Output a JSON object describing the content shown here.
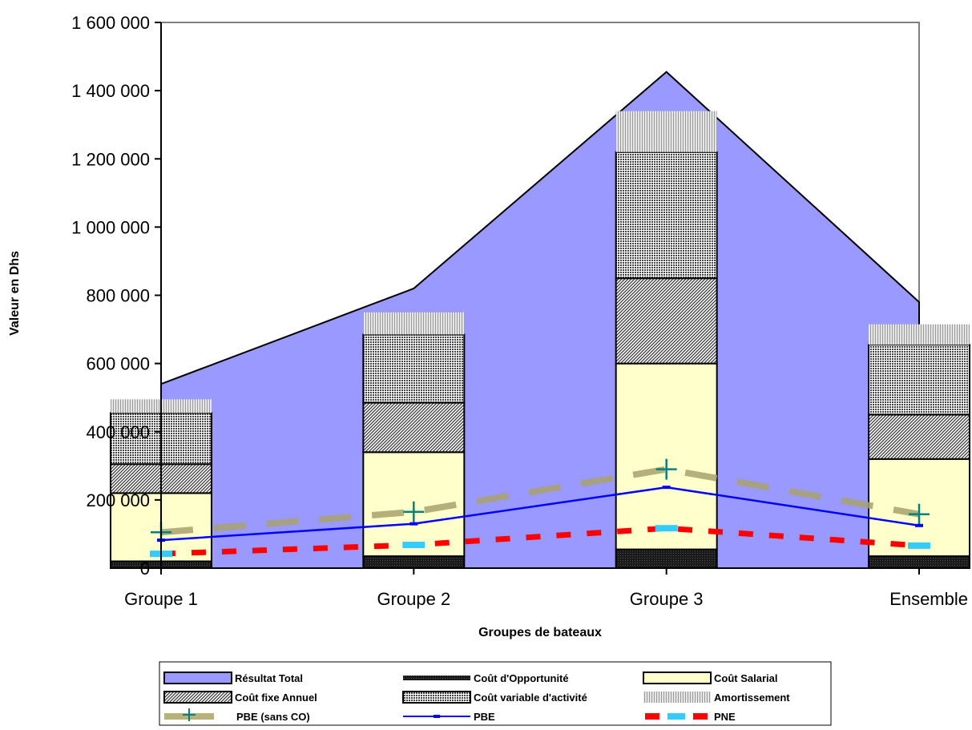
{
  "chart_data": {
    "type": "bar",
    "stacked": true,
    "title": "",
    "xlabel": "Groupes de bateaux",
    "ylabel": "Valeur en Dhs",
    "ylim": [
      0,
      1600000
    ],
    "yticks": [
      0,
      200000,
      400000,
      600000,
      800000,
      1000000,
      1200000,
      1400000,
      1600000
    ],
    "ytick_labels": [
      "0",
      "200 000",
      "400 000",
      "600 000",
      "800 000",
      "1 000 000",
      "1 200 000",
      "1 400 000",
      "1 600 000"
    ],
    "categories": [
      "Groupe 1",
      "Groupe 2",
      "Groupe 3",
      "Ensemble"
    ],
    "area_series": {
      "name": "Résultat Total",
      "values": [
        540000,
        820000,
        1455000,
        780000
      ],
      "color": "#9999ff"
    },
    "stack_series": [
      {
        "name": "Coût d'Opportunité",
        "values": [
          20000,
          35000,
          55000,
          35000
        ],
        "color": "#222222"
      },
      {
        "name": "Coût Salarial",
        "values": [
          200000,
          305000,
          545000,
          285000
        ],
        "color": "#ffffcc"
      },
      {
        "name": "Coût fixe Annuel",
        "values": [
          85000,
          145000,
          250000,
          130000
        ],
        "color": "#777777"
      },
      {
        "name": "Coût variable d'activité",
        "values": [
          150000,
          200000,
          370000,
          205000
        ],
        "color": "#888888"
      },
      {
        "name": "Amortissement",
        "values": [
          40000,
          65000,
          120000,
          60000
        ],
        "color": "#c8c8c8"
      }
    ],
    "line_series": [
      {
        "name": "PBE (sans CO)",
        "values": [
          105000,
          165000,
          290000,
          158000
        ],
        "color": "#b8b27a"
      },
      {
        "name": "PBE",
        "values": [
          82000,
          130000,
          237000,
          125000
        ],
        "color": "#0000ff"
      },
      {
        "name": "PNE",
        "values": [
          42000,
          68000,
          117000,
          66000
        ],
        "color": "#ff0000",
        "marker_color": "#33ccff"
      }
    ],
    "legend": {
      "position": "bottom",
      "items": [
        "Résultat Total",
        "Coût d'Opportunité",
        "Coût Salarial",
        "Coût fixe Annuel",
        "Coût variable d'activité",
        "Amortissement",
        "PBE (sans CO)",
        "PBE",
        "PNE"
      ]
    }
  }
}
